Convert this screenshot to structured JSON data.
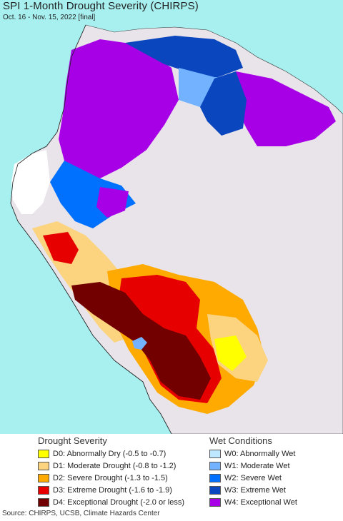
{
  "header": {
    "title": "SPI 1-Month Drought Severity (CHIRPS)",
    "subtitle": "Oct. 16 - Nov. 15, 2022 [final]"
  },
  "map": {
    "ocean_color": "#a8f0f0",
    "land_color": "#e8e4ea",
    "neutral_color": "#ffffff"
  },
  "legend": {
    "drought_heading": "Drought Severity",
    "wet_heading": "Wet Conditions",
    "drought": [
      {
        "label": "D0: Abnormally Dry (-0.5 to -0.7)",
        "color": "#ffff00"
      },
      {
        "label": "D1: Moderate Drought (-0.8 to -1.2)",
        "color": "#fcd37f"
      },
      {
        "label": "D2: Severe Drought (-1.3 to -1.5)",
        "color": "#ffaa00"
      },
      {
        "label": "D3: Extreme Drought (-1.6 to -1.9)",
        "color": "#e60000"
      },
      {
        "label": "D4: Exceptional Drought (-2.0 or less)",
        "color": "#730000"
      }
    ],
    "wet": [
      {
        "label": "W0: Abnormally Wet",
        "color": "#bee8ff"
      },
      {
        "label": "W1: Moderate Wet",
        "color": "#73b2ff"
      },
      {
        "label": "W2: Severe Wet",
        "color": "#0070ff"
      },
      {
        "label": "W3: Extreme Wet",
        "color": "#0a46be"
      },
      {
        "label": "W4: Exceptional Wet",
        "color": "#a800e6"
      }
    ]
  },
  "footer": {
    "source": "Source: CHIRPS, UCSB, Climate Hazards Center"
  }
}
